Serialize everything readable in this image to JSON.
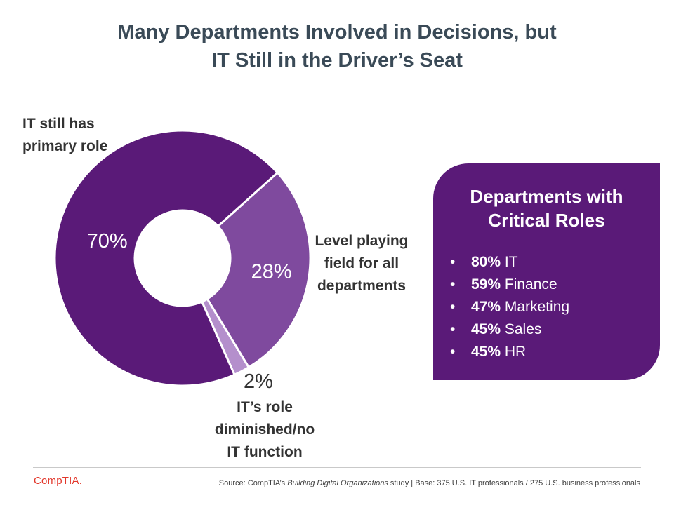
{
  "title": {
    "line1": "Many Departments Involved in Decisions, but",
    "line2": "IT Still in the Driver’s Seat"
  },
  "chart_data": {
    "type": "pie",
    "variant": "donut",
    "slices": [
      {
        "label": "IT still has primary role",
        "value": 70,
        "display": "70%",
        "color": "#5a1a78"
      },
      {
        "label": "Level playing field for all departments",
        "value": 28,
        "display": "28%",
        "color": "#7f4a9e"
      },
      {
        "label": "IT’s role diminished/no IT function",
        "value": 2,
        "display": "2%",
        "color": "#b48fcc"
      }
    ]
  },
  "labels": {
    "it_primary": {
      "line1": "IT still has",
      "line2": "primary role"
    },
    "level_field": {
      "line1": "Level playing",
      "line2": "field for all",
      "line3": "departments"
    },
    "diminished": {
      "line1": "IT’s role",
      "line2": "diminished/no",
      "line3": "IT function"
    }
  },
  "departments": {
    "title_line1": "Departments with",
    "title_line2": "Critical Roles",
    "bullet": "•",
    "items": [
      {
        "pct": "80%",
        "name": "IT"
      },
      {
        "pct": "59%",
        "name": "Finance"
      },
      {
        "pct": "47%",
        "name": "Marketing"
      },
      {
        "pct": "45%",
        "name": "Sales"
      },
      {
        "pct": "45%",
        "name": "HR"
      }
    ],
    "color": "#5a1a78"
  },
  "footer": {
    "logo": "CompTIA.",
    "source_prefix": "Source: CompTIA’s ",
    "source_italic": "Building Digital Organizations",
    "source_suffix": " study | Base: 375 U.S. IT professionals / 275 U.S. business professionals",
    "logo_color": "#e2372b"
  }
}
